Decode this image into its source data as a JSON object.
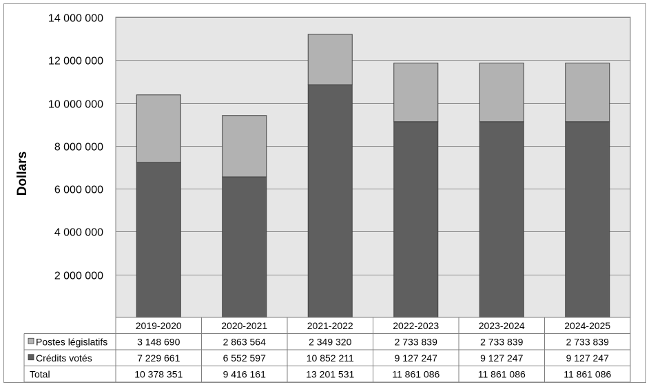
{
  "chart_data": {
    "type": "bar",
    "stacked": true,
    "categories": [
      "2019-2020",
      "2020-2021",
      "2021-2022",
      "2022-2023",
      "2023-2024",
      "2024-2025"
    ],
    "series": [
      {
        "name": "Crédits votés",
        "values": [
          7229661,
          6552597,
          10852211,
          9127247,
          9127247,
          9127247
        ],
        "color": "#5f5f5f",
        "labels": [
          "7 229 661",
          "6 552 597",
          "10 852 211",
          "9 127 247",
          "9 127 247",
          "9 127 247"
        ]
      },
      {
        "name": "Postes législatifs",
        "values": [
          3148690,
          2863564,
          2349320,
          2733839,
          2733839,
          2733839
        ],
        "color": "#b2b2b2",
        "labels": [
          "3 148 690",
          "2 863 564",
          "2 349 320",
          "2 733 839",
          "2 733 839",
          "2 733 839"
        ]
      }
    ],
    "table": {
      "rows": [
        {
          "label": "Postes législatifs",
          "series": 1
        },
        {
          "label": "Crédits votés",
          "series": 0
        },
        {
          "label": "Total",
          "values": [
            "10 378 351",
            "9 416 161",
            "13 201 531",
            "11 861 086",
            "11 861 086",
            "11 861 086"
          ]
        }
      ]
    },
    "ylabel": "Dollars",
    "ylim": [
      0,
      14000000
    ],
    "yticks": [
      2000000,
      4000000,
      6000000,
      8000000,
      10000000,
      12000000,
      14000000
    ],
    "ytick_labels": [
      "2 000 000",
      "4 000 000",
      "6 000 000",
      "8 000 000",
      "10 000 000",
      "12 000 000",
      "14 000 000"
    ],
    "grid": true,
    "plot_background": "#e6e6e6",
    "legend": "data table"
  }
}
